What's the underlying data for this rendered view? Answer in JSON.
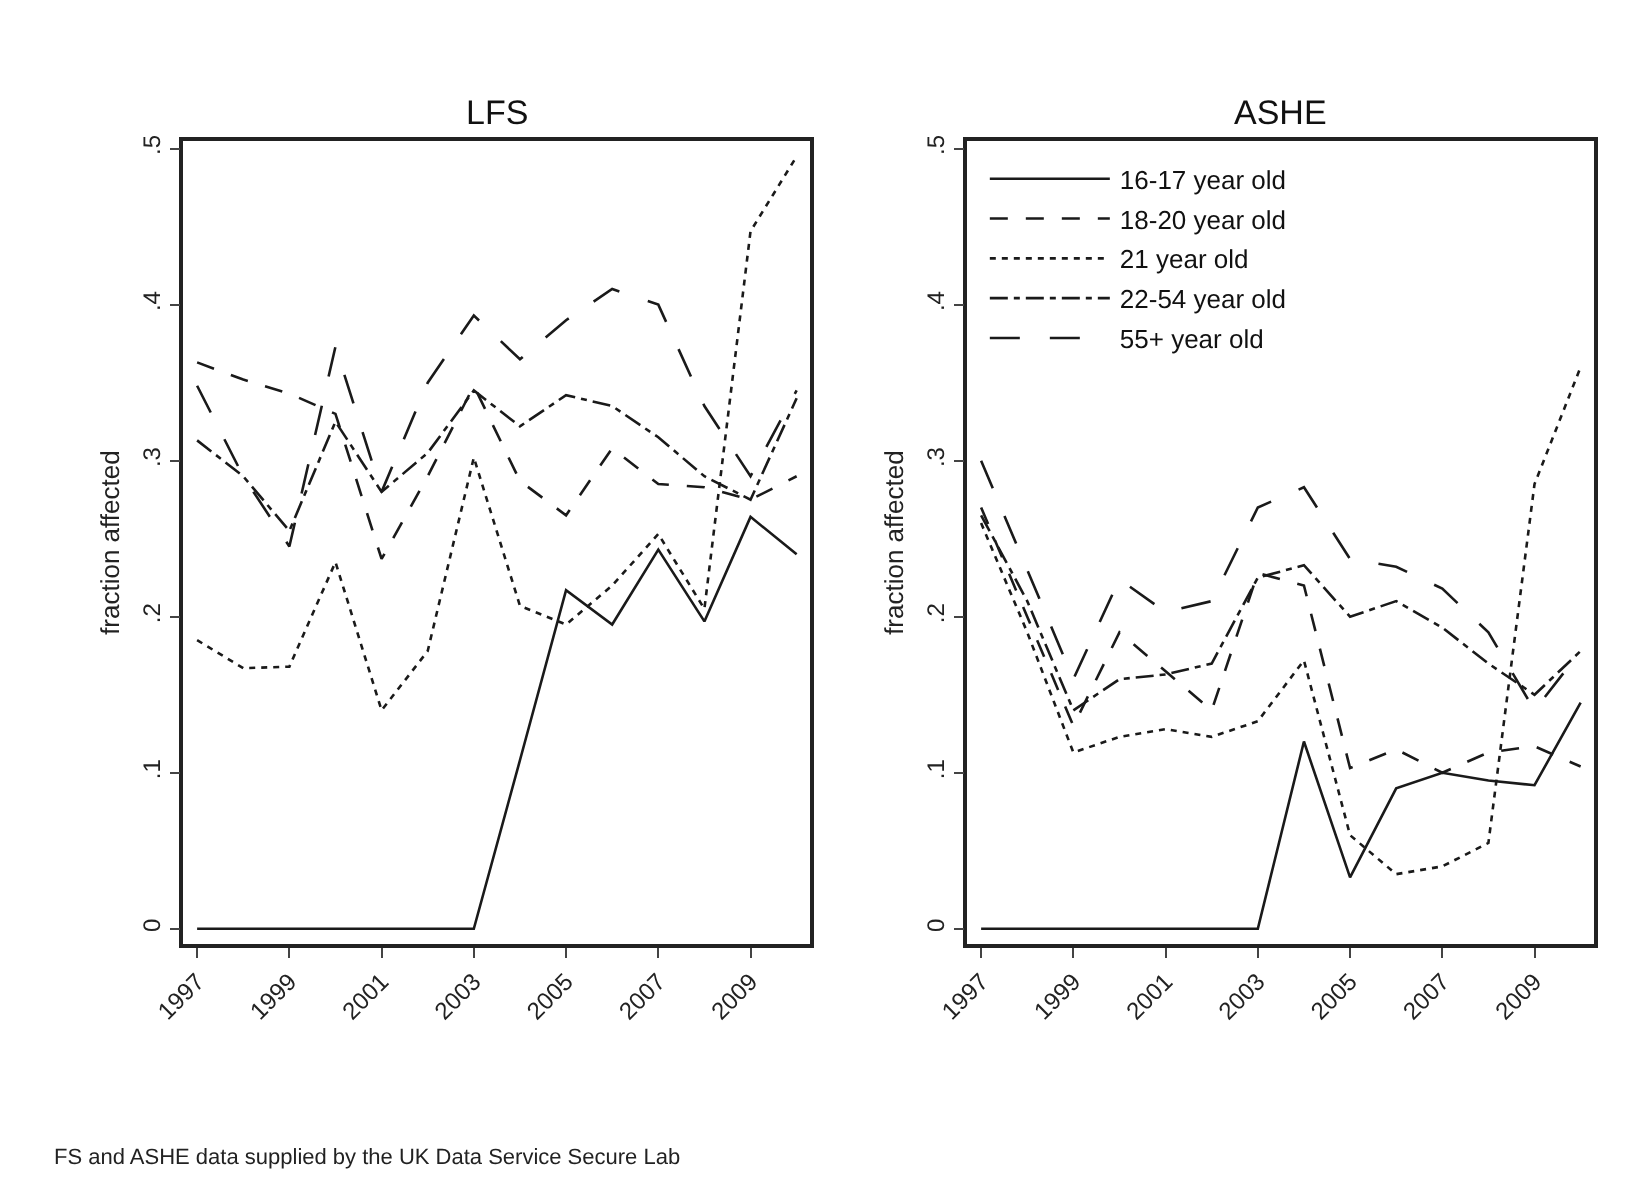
{
  "chart_data": [
    {
      "type": "line",
      "title": "LFS",
      "ylabel": "fraction affected",
      "x": [
        1997,
        1998,
        1999,
        2000,
        2001,
        2002,
        2003,
        2004,
        2005,
        2006,
        2007,
        2008,
        2009,
        2010
      ],
      "xlim": [
        1996.7,
        2010.3
      ],
      "xticks": [
        1997,
        1999,
        2001,
        2003,
        2005,
        2007,
        2009
      ],
      "ylim": [
        -0.01,
        0.505
      ],
      "yticks": [
        {
          "value": 0,
          "label": "0"
        },
        {
          "value": 0.1,
          "label": ".1"
        },
        {
          "value": 0.2,
          "label": ".2"
        },
        {
          "value": 0.3,
          "label": ".3"
        },
        {
          "value": 0.4,
          "label": ".4"
        },
        {
          "value": 0.5,
          "label": ".5"
        }
      ],
      "marker": "none",
      "series": [
        {
          "color": "#1a1a1a",
          "line_style": "solid",
          "values": [
            0,
            0,
            0,
            0,
            0,
            0,
            0,
            0.108,
            0.217,
            0.195,
            0.243,
            0.197,
            0.264,
            0.24
          ]
        },
        {
          "color": "#1a1a1a",
          "line_style": "dashed",
          "values": [
            0.363,
            0.352,
            0.343,
            0.33,
            0.237,
            0.29,
            0.348,
            0.287,
            0.265,
            0.308,
            0.285,
            0.283,
            0.275,
            0.29
          ]
        },
        {
          "color": "#1a1a1a",
          "line_style": "dotted",
          "values": [
            0.185,
            0.167,
            0.168,
            0.235,
            0.14,
            0.178,
            0.302,
            0.207,
            0.195,
            0.22,
            0.253,
            0.205,
            0.447,
            0.495
          ]
        },
        {
          "color": "#1a1a1a",
          "line_style": "dashdot",
          "values": [
            0.313,
            0.29,
            0.255,
            0.325,
            0.28,
            0.305,
            0.345,
            0.322,
            0.342,
            0.335,
            0.315,
            0.29,
            0.275,
            0.34
          ]
        },
        {
          "color": "#1a1a1a",
          "line_style": "longdash",
          "values": [
            0.348,
            0.29,
            0.245,
            0.373,
            0.28,
            0.35,
            0.393,
            0.365,
            0.39,
            0.41,
            0.4,
            0.335,
            0.29,
            0.345
          ]
        }
      ],
      "annotations": [
        "FS and ASHE data supplied by the UK Data Service Secure Lab"
      ]
    },
    {
      "type": "line",
      "title": "ASHE",
      "ylabel": "fraction affected",
      "x": [
        1997,
        1998,
        1999,
        2000,
        2001,
        2002,
        2003,
        2004,
        2005,
        2006,
        2007,
        2008,
        2009,
        2010
      ],
      "xlim": [
        1996.7,
        2010.3
      ],
      "xticks": [
        1997,
        1999,
        2001,
        2003,
        2005,
        2007,
        2009
      ],
      "ylim": [
        -0.01,
        0.505
      ],
      "yticks": [
        {
          "value": 0,
          "label": "0"
        },
        {
          "value": 0.1,
          "label": ".1"
        },
        {
          "value": 0.2,
          "label": ".2"
        },
        {
          "value": 0.3,
          "label": ".3"
        },
        {
          "value": 0.4,
          "label": ".4"
        },
        {
          "value": 0.5,
          "label": ".5"
        }
      ],
      "legend": "top left",
      "marker": "none",
      "series": [
        {
          "name": "16-17 year old",
          "color": "#1a1a1a",
          "line_style": "solid",
          "values": [
            0,
            0,
            0,
            0,
            0,
            0,
            0,
            0.12,
            0.033,
            0.09,
            0.1,
            0.095,
            0.092,
            0.145
          ]
        },
        {
          "name": "18-20 year old",
          "color": "#1a1a1a",
          "line_style": "dashed",
          "values": [
            0.27,
            0.2,
            0.13,
            0.19,
            0.165,
            0.14,
            0.228,
            0.22,
            0.103,
            0.115,
            0.1,
            0.113,
            0.117,
            0.104
          ]
        },
        {
          "name": "21 year old",
          "color": "#1a1a1a",
          "line_style": "dotted",
          "values": [
            0.26,
            0.19,
            0.113,
            0.123,
            0.128,
            0.123,
            0.133,
            0.172,
            0.06,
            0.035,
            0.04,
            0.055,
            0.285,
            0.36
          ]
        },
        {
          "name": "22-54 year old",
          "color": "#1a1a1a",
          "line_style": "dashdot",
          "values": [
            0.265,
            0.21,
            0.14,
            0.16,
            0.163,
            0.17,
            0.225,
            0.233,
            0.2,
            0.21,
            0.193,
            0.17,
            0.15,
            0.178
          ]
        },
        {
          "name": "55+ year old",
          "color": "#1a1a1a",
          "line_style": "longdash",
          "values": [
            0.3,
            0.23,
            0.16,
            0.224,
            0.203,
            0.21,
            0.27,
            0.283,
            0.237,
            0.232,
            0.218,
            0.19,
            0.14,
            0.178
          ]
        }
      ]
    }
  ]
}
